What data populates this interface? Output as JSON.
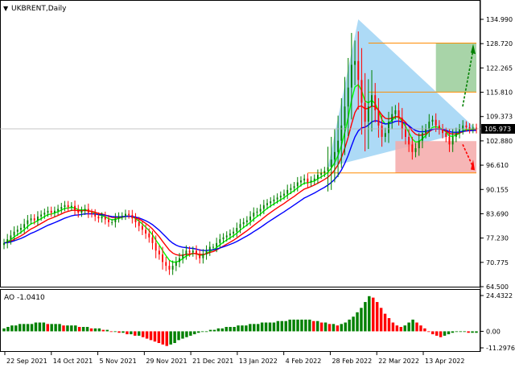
{
  "main_panel": {
    "symbol_label": "UKBRENT,Daily",
    "current_price_label": "105.973",
    "price_axis_labels": [
      "134.990",
      "128.720",
      "122.265",
      "115.810",
      "109.373",
      "102.880",
      "96.610",
      "90.155",
      "83.690",
      "77.230",
      "70.775",
      "64.500"
    ]
  },
  "ao_panel": {
    "label": "AO -1.0410",
    "axis_labels": [
      "24.4322",
      "0.00",
      "-11.2976"
    ]
  },
  "time_axis": {
    "labels": [
      "22 Sep 2021",
      "14 Oct 2021",
      "5 Nov 2021",
      "29 Nov 2021",
      "21 Dec 2021",
      "13 Jan 2022",
      "4 Feb 2022",
      "28 Feb 2022",
      "22 Mar 2022",
      "13 Apr 2022"
    ]
  },
  "colors": {
    "bull_candle": "#008000",
    "bear_candle": "#ff0000",
    "ma_fast": "#00ff00",
    "ma_mid": "#ff0000",
    "ma_slow": "#0000ff",
    "triangle_fill": "#9fd3f5",
    "level_line": "#ff8c00",
    "target_up_box": "#99cc99",
    "target_down_box": "#f5a9a9",
    "arrow_up": "#008000",
    "arrow_down": "#ff0000",
    "ao_up": "#008000",
    "ao_down": "#ff0000"
  },
  "chart_data": {
    "type": "candlestick",
    "ylim": [
      64.5,
      134.99
    ],
    "ao_ylim": [
      -11.2976,
      24.4322
    ],
    "closes": [
      76,
      77,
      78,
      79,
      79.5,
      80,
      81,
      82,
      82.5,
      82,
      83,
      83.5,
      84,
      84.5,
      84,
      84.5,
      85,
      85.5,
      86,
      85.5,
      85.8,
      84.8,
      84,
      84.5,
      85,
      84,
      83.7,
      83,
      82.5,
      83,
      82.2,
      81.5,
      81.5,
      82.5,
      83,
      83.2,
      83.7,
      83.4,
      82.5,
      81.5,
      80.5,
      79.5,
      78.5,
      77.5,
      76,
      74,
      73,
      71,
      70,
      69,
      70,
      71,
      72,
      73,
      74,
      73.5,
      74,
      73,
      72,
      73,
      74,
      75,
      75,
      76,
      77,
      77.5,
      78,
      78.5,
      79,
      80,
      81,
      81.5,
      82,
      83,
      84,
      84.3,
      85,
      86,
      86.5,
      87,
      87.5,
      88,
      88.5,
      89,
      90,
      90.5,
      91,
      92,
      92.5,
      93,
      92,
      92.5,
      93,
      94,
      94.5,
      95,
      96,
      98,
      100,
      103,
      107,
      112,
      117,
      123,
      124,
      119,
      113,
      108,
      112,
      115,
      111,
      107,
      104,
      105,
      108,
      110,
      111,
      109,
      106,
      104,
      102,
      100,
      101,
      103,
      105,
      106,
      108,
      108.5,
      107,
      106,
      105,
      104,
      102,
      104,
      105,
      106,
      107,
      106.5,
      106,
      106.4,
      105.973
    ],
    "ao_values": [
      2,
      3,
      4,
      4,
      5,
      5,
      5,
      5,
      6,
      6,
      6,
      5,
      5,
      5,
      5,
      4,
      4,
      4,
      4,
      3,
      3,
      3,
      2,
      2,
      2,
      1,
      1,
      0,
      0,
      -1,
      -1,
      -2,
      -2,
      -3,
      -3,
      -4,
      -5,
      -6,
      -7,
      -8,
      -9,
      -10,
      -9,
      -8,
      -6,
      -5,
      -4,
      -3,
      -2,
      -1,
      0,
      0,
      1,
      1,
      2,
      2,
      3,
      3,
      3,
      4,
      4,
      4,
      5,
      5,
      5,
      6,
      6,
      6,
      6,
      7,
      7,
      7,
      8,
      8,
      8,
      8,
      8,
      8,
      7,
      7,
      6,
      6,
      5,
      5,
      4,
      5,
      6,
      8,
      10,
      13,
      16,
      20,
      24,
      23,
      20,
      16,
      12,
      9,
      6,
      4,
      3,
      4,
      6,
      8,
      6,
      4,
      2,
      0,
      -2,
      -3,
      -4,
      -3,
      -2,
      -1,
      0,
      0,
      0,
      -1,
      -1,
      -1
    ],
    "triangle_vertices_price": [
      [
        96.0,
        "left"
      ],
      [
        135.0,
        "apex"
      ],
      [
        106.0,
        "right"
      ]
    ],
    "target_up_price": [
      115.81,
      128.72
    ],
    "target_down_price": [
      94.5,
      102.88
    ]
  }
}
